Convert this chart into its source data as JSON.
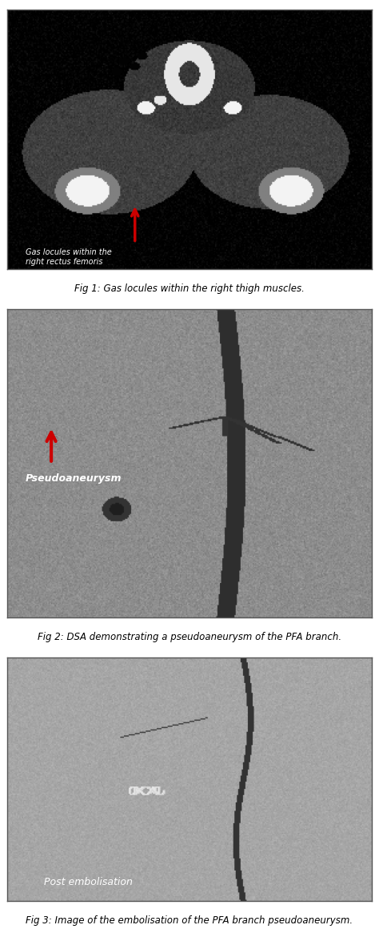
{
  "fig_width": 4.74,
  "fig_height": 11.8,
  "dpi": 100,
  "bg_color": "#ffffff",
  "fig1_caption": "Fig 1: Gas locules within the right thigh muscles.",
  "fig2_caption": "Fig 2: DSA demonstrating a pseudoaneurysm of the PFA branch.",
  "fig3_caption": "Fig 3: Image of the embolisation of the PFA branch pseudoaneurysm.",
  "fig1_label": "Gas locules within the\nright rectus femoris",
  "fig2_label": "Pseudoaneurysm",
  "fig3_label": "Post embolisation",
  "arrow_color": "#cc0000",
  "label_color_fig1": "#ffffff",
  "label_color_fig2": "#ffffff",
  "label_color_fig3": "#ffffff",
  "caption_color": "#000000",
  "caption_fontsize": 8.5,
  "panel_label_fontsize": 9,
  "ct_bg": "#1a1a1a",
  "dsa_bg": "#6a6a6a",
  "post_bg": "#8a8a8a"
}
